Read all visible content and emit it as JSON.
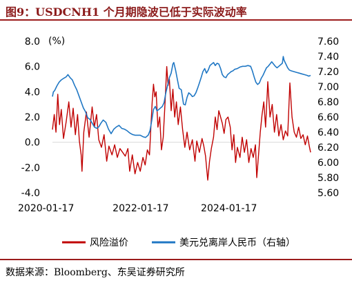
{
  "header": {
    "title": "图9：USDCNH1 个月期隐波已低于实际波动率"
  },
  "footer": {
    "source": "数据来源：Bloomberg、东吴证券研究所"
  },
  "colors": {
    "red_series": "#c00000",
    "blue_series": "#1f77c4",
    "title": "#8b1a1a",
    "rule": "#9b1b1b",
    "zero_line": "#d9d9d9"
  },
  "chart_data": {
    "type": "line",
    "left_unit": "(%)",
    "left_axis": {
      "ticks": [
        "8.0",
        "6.0",
        "4.0",
        "2.0",
        "0.0",
        "-2.0",
        "-4.0"
      ],
      "min": -4,
      "max": 8
    },
    "right_axis": {
      "ticks": [
        "7.60",
        "7.40",
        "7.20",
        "7.00",
        "6.80",
        "6.60",
        "6.40",
        "6.20",
        "6.00",
        "5.80",
        "5.60"
      ],
      "min": 5.6,
      "max": 7.6
    },
    "x_axis": {
      "ticks": [
        "2020-01-17",
        "2022-01-17",
        "2024-01-17"
      ],
      "start": 2020.05,
      "end": 2025.9
    },
    "grid": false,
    "legend_position": "bottom",
    "series": [
      {
        "name": "风险溢价",
        "axis": "left",
        "points": [
          [
            2020.05,
            1.0
          ],
          [
            2020.09,
            2.2
          ],
          [
            2020.13,
            0.8
          ],
          [
            2020.17,
            3.8
          ],
          [
            2020.21,
            1.4
          ],
          [
            2020.25,
            2.6
          ],
          [
            2020.3,
            0.3
          ],
          [
            2020.36,
            1.6
          ],
          [
            2020.42,
            3.2
          ],
          [
            2020.47,
            1.2
          ],
          [
            2020.52,
            2.7
          ],
          [
            2020.57,
            0.6
          ],
          [
            2020.62,
            2.2
          ],
          [
            2020.66,
            0.1
          ],
          [
            2020.7,
            -1.0
          ],
          [
            2020.72,
            -2.3
          ],
          [
            2020.76,
            0.8
          ],
          [
            2020.82,
            2.4
          ],
          [
            2020.88,
            0.4
          ],
          [
            2020.95,
            2.8
          ],
          [
            2021.0,
            1.2
          ],
          [
            2021.05,
            2.2
          ],
          [
            2021.1,
            0.2
          ],
          [
            2021.16,
            -0.4
          ],
          [
            2021.22,
            0.6
          ],
          [
            2021.28,
            -1.5
          ],
          [
            2021.33,
            -0.3
          ],
          [
            2021.4,
            -1.0
          ],
          [
            2021.46,
            -0.2
          ],
          [
            2021.52,
            -1.2
          ],
          [
            2021.58,
            -0.5
          ],
          [
            2021.64,
            -0.8
          ],
          [
            2021.7,
            -1.1
          ],
          [
            2021.76,
            -0.5
          ],
          [
            2021.8,
            -2.3
          ],
          [
            2021.86,
            -1.0
          ],
          [
            2021.92,
            -2.5
          ],
          [
            2021.98,
            -1.6
          ],
          [
            2022.04,
            -2.3
          ],
          [
            2022.1,
            -1.2
          ],
          [
            2022.15,
            -1.8
          ],
          [
            2022.2,
            -0.6
          ],
          [
            2022.25,
            -1.0
          ],
          [
            2022.28,
            1.2
          ],
          [
            2022.31,
            3.2
          ],
          [
            2022.34,
            4.6
          ],
          [
            2022.37,
            3.6
          ],
          [
            2022.4,
            4.0
          ],
          [
            2022.44,
            1.2
          ],
          [
            2022.48,
            2.0
          ],
          [
            2022.52,
            -0.6
          ],
          [
            2022.56,
            0.4
          ],
          [
            2022.6,
            3.0
          ],
          [
            2022.64,
            6.0
          ],
          [
            2022.67,
            4.5
          ],
          [
            2022.7,
            5.0
          ],
          [
            2022.74,
            2.5
          ],
          [
            2022.78,
            4.2
          ],
          [
            2022.82,
            2.0
          ],
          [
            2022.86,
            3.2
          ],
          [
            2022.9,
            1.4
          ],
          [
            2022.95,
            2.8
          ],
          [
            2023.0,
            1.0
          ],
          [
            2023.05,
            -0.4
          ],
          [
            2023.1,
            0.8
          ],
          [
            2023.16,
            -0.6
          ],
          [
            2023.22,
            0.2
          ],
          [
            2023.28,
            -1.5
          ],
          [
            2023.32,
            0.1
          ],
          [
            2023.38,
            -0.8
          ],
          [
            2023.44,
            0.3
          ],
          [
            2023.48,
            -0.3
          ],
          [
            2023.52,
            -1.1
          ],
          [
            2023.55,
            -2.3
          ],
          [
            2023.57,
            -3.0
          ],
          [
            2023.61,
            -1.5
          ],
          [
            2023.65,
            -0.5
          ],
          [
            2023.7,
            0.4
          ],
          [
            2023.74,
            2.0
          ],
          [
            2023.78,
            1.0
          ],
          [
            2023.82,
            2.5
          ],
          [
            2023.86,
            2.0
          ],
          [
            2023.9,
            1.5
          ],
          [
            2023.94,
            0.7
          ],
          [
            2023.98,
            1.8
          ],
          [
            2024.03,
            2.0
          ],
          [
            2024.08,
            1.2
          ],
          [
            2024.12,
            -0.6
          ],
          [
            2024.16,
            0.6
          ],
          [
            2024.2,
            -1.6
          ],
          [
            2024.24,
            -0.4
          ],
          [
            2024.3,
            -1.2
          ],
          [
            2024.35,
            0.4
          ],
          [
            2024.4,
            -0.8
          ],
          [
            2024.45,
            0.2
          ],
          [
            2024.5,
            -1.6
          ],
          [
            2024.55,
            -0.5
          ],
          [
            2024.6,
            -1.2
          ],
          [
            2024.65,
            -0.2
          ],
          [
            2024.68,
            -2.8
          ],
          [
            2024.72,
            -1.0
          ],
          [
            2024.76,
            0.8
          ],
          [
            2024.8,
            2.2
          ],
          [
            2024.84,
            3.2
          ],
          [
            2024.88,
            1.2
          ],
          [
            2024.93,
            4.8
          ],
          [
            2024.98,
            2.0
          ],
          [
            2025.03,
            3.0
          ],
          [
            2025.08,
            0.8
          ],
          [
            2025.13,
            2.2
          ],
          [
            2025.18,
            0.5
          ],
          [
            2025.23,
            1.4
          ],
          [
            2025.28,
            0.2
          ],
          [
            2025.33,
            0.9
          ],
          [
            2025.38,
            0.5
          ],
          [
            2025.43,
            4.7
          ],
          [
            2025.48,
            2.0
          ],
          [
            2025.53,
            0.8
          ],
          [
            2025.58,
            0.4
          ],
          [
            2025.63,
            1.2
          ],
          [
            2025.68,
            0.3
          ],
          [
            2025.73,
            0.6
          ],
          [
            2025.78,
            -0.2
          ],
          [
            2025.83,
            0.5
          ],
          [
            2025.87,
            -0.3
          ],
          [
            2025.9,
            -0.8
          ]
        ]
      },
      {
        "name": "美元兑离岸人民币（右轴）",
        "axis": "right",
        "points": [
          [
            2020.05,
            6.87
          ],
          [
            2020.07,
            6.93
          ],
          [
            2020.1,
            6.95
          ],
          [
            2020.15,
            7.01
          ],
          [
            2020.2,
            7.06
          ],
          [
            2020.25,
            7.09
          ],
          [
            2020.3,
            7.11
          ],
          [
            2020.36,
            7.13
          ],
          [
            2020.4,
            7.16
          ],
          [
            2020.45,
            7.12
          ],
          [
            2020.5,
            7.09
          ],
          [
            2020.55,
            7.02
          ],
          [
            2020.6,
            6.96
          ],
          [
            2020.65,
            6.88
          ],
          [
            2020.7,
            6.8
          ],
          [
            2020.75,
            6.72
          ],
          [
            2020.8,
            6.67
          ],
          [
            2020.85,
            6.59
          ],
          [
            2020.9,
            6.57
          ],
          [
            2020.95,
            6.52
          ],
          [
            2021.0,
            6.47
          ],
          [
            2021.05,
            6.45
          ],
          [
            2021.1,
            6.47
          ],
          [
            2021.15,
            6.52
          ],
          [
            2021.2,
            6.56
          ],
          [
            2021.26,
            6.53
          ],
          [
            2021.32,
            6.44
          ],
          [
            2021.38,
            6.38
          ],
          [
            2021.44,
            6.44
          ],
          [
            2021.5,
            6.47
          ],
          [
            2021.56,
            6.49
          ],
          [
            2021.62,
            6.45
          ],
          [
            2021.68,
            6.44
          ],
          [
            2021.74,
            6.42
          ],
          [
            2021.8,
            6.39
          ],
          [
            2021.86,
            6.37
          ],
          [
            2021.92,
            6.36
          ],
          [
            2021.98,
            6.36
          ],
          [
            2022.04,
            6.36
          ],
          [
            2022.1,
            6.34
          ],
          [
            2022.16,
            6.33
          ],
          [
            2022.22,
            6.36
          ],
          [
            2022.26,
            6.42
          ],
          [
            2022.3,
            6.55
          ],
          [
            2022.34,
            6.7
          ],
          [
            2022.38,
            6.74
          ],
          [
            2022.42,
            6.68
          ],
          [
            2022.46,
            6.7
          ],
          [
            2022.5,
            6.72
          ],
          [
            2022.54,
            6.74
          ],
          [
            2022.58,
            6.79
          ],
          [
            2022.62,
            6.92
          ],
          [
            2022.66,
            7.02
          ],
          [
            2022.7,
            7.12
          ],
          [
            2022.74,
            7.18
          ],
          [
            2022.78,
            7.3
          ],
          [
            2022.8,
            7.32
          ],
          [
            2022.84,
            7.22
          ],
          [
            2022.88,
            7.1
          ],
          [
            2022.92,
            6.98
          ],
          [
            2022.97,
            6.96
          ],
          [
            2023.02,
            6.77
          ],
          [
            2023.06,
            6.76
          ],
          [
            2023.1,
            6.86
          ],
          [
            2023.14,
            6.92
          ],
          [
            2023.18,
            6.9
          ],
          [
            2023.22,
            6.87
          ],
          [
            2023.26,
            6.88
          ],
          [
            2023.3,
            6.92
          ],
          [
            2023.34,
            6.98
          ],
          [
            2023.38,
            7.05
          ],
          [
            2023.42,
            7.12
          ],
          [
            2023.46,
            7.2
          ],
          [
            2023.5,
            7.24
          ],
          [
            2023.54,
            7.18
          ],
          [
            2023.58,
            7.22
          ],
          [
            2023.62,
            7.28
          ],
          [
            2023.66,
            7.3
          ],
          [
            2023.7,
            7.32
          ],
          [
            2023.74,
            7.28
          ],
          [
            2023.78,
            7.31
          ],
          [
            2023.82,
            7.3
          ],
          [
            2023.86,
            7.24
          ],
          [
            2023.9,
            7.16
          ],
          [
            2023.94,
            7.13
          ],
          [
            2023.98,
            7.12
          ],
          [
            2024.02,
            7.16
          ],
          [
            2024.06,
            7.18
          ],
          [
            2024.1,
            7.2
          ],
          [
            2024.14,
            7.21
          ],
          [
            2024.18,
            7.23
          ],
          [
            2024.24,
            7.24
          ],
          [
            2024.3,
            7.26
          ],
          [
            2024.36,
            7.27
          ],
          [
            2024.42,
            7.27
          ],
          [
            2024.48,
            7.28
          ],
          [
            2024.54,
            7.27
          ],
          [
            2024.58,
            7.21
          ],
          [
            2024.62,
            7.13
          ],
          [
            2024.66,
            7.06
          ],
          [
            2024.7,
            7.03
          ],
          [
            2024.74,
            7.05
          ],
          [
            2024.78,
            7.11
          ],
          [
            2024.82,
            7.15
          ],
          [
            2024.86,
            7.2
          ],
          [
            2024.9,
            7.25
          ],
          [
            2024.94,
            7.27
          ],
          [
            2024.98,
            7.3
          ],
          [
            2025.02,
            7.33
          ],
          [
            2025.06,
            7.3
          ],
          [
            2025.1,
            7.27
          ],
          [
            2025.14,
            7.25
          ],
          [
            2025.18,
            7.27
          ],
          [
            2025.22,
            7.29
          ],
          [
            2025.26,
            7.31
          ],
          [
            2025.28,
            7.4
          ],
          [
            2025.3,
            7.35
          ],
          [
            2025.34,
            7.3
          ],
          [
            2025.38,
            7.25
          ],
          [
            2025.42,
            7.22
          ],
          [
            2025.46,
            7.21
          ],
          [
            2025.52,
            7.2
          ],
          [
            2025.58,
            7.19
          ],
          [
            2025.64,
            7.18
          ],
          [
            2025.7,
            7.17
          ],
          [
            2025.76,
            7.16
          ],
          [
            2025.82,
            7.15
          ],
          [
            2025.86,
            7.14
          ],
          [
            2025.9,
            7.15
          ]
        ]
      }
    ]
  }
}
